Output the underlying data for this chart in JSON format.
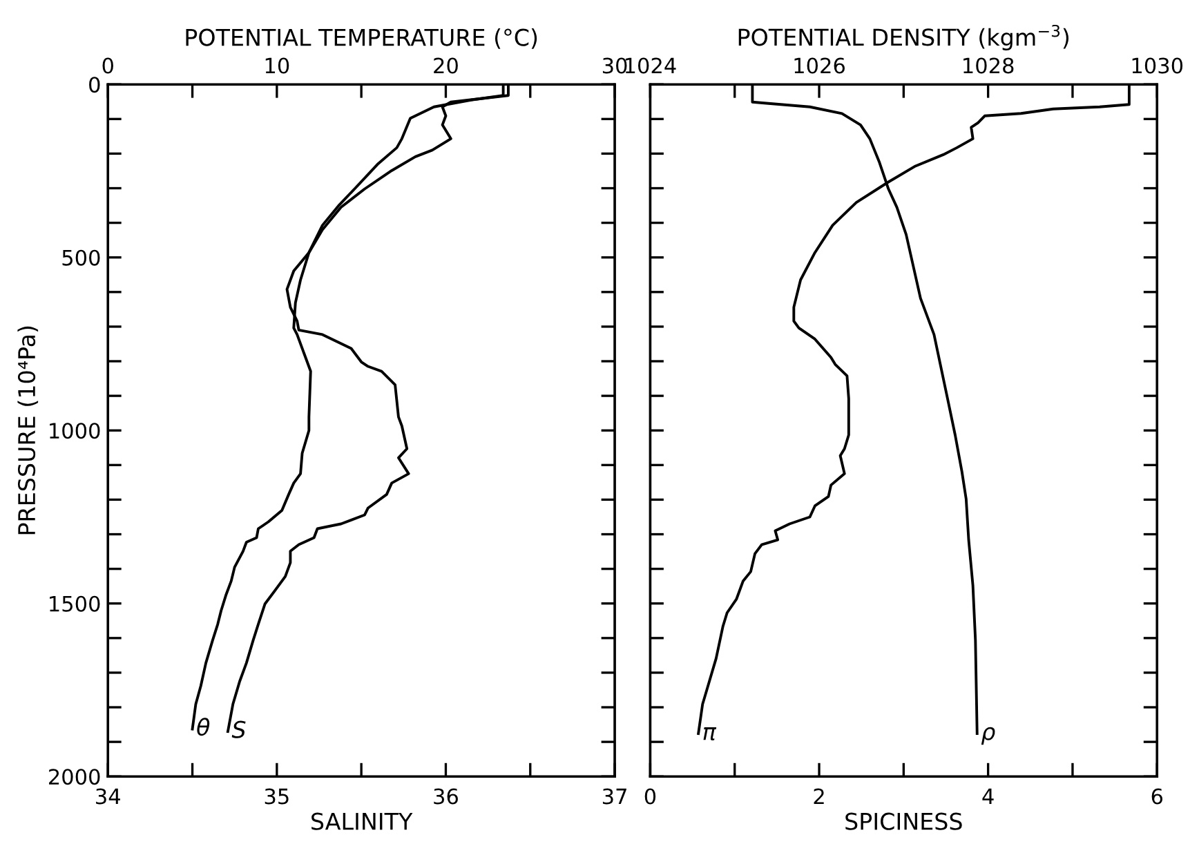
{
  "chart_data": [
    {
      "type": "line",
      "xlabel": "SALINITY",
      "x2label": "POTENTIAL TEMPERATURE (°C)",
      "ylabel": "PRESSURE (10⁴Pa)",
      "xlim": [
        34,
        37
      ],
      "xticks": [
        34,
        {
          "value": 34.5,
          "label": null
        },
        35,
        {
          "value": 35.5,
          "label": null
        },
        36,
        {
          "value": 36.5,
          "label": null
        },
        37
      ],
      "x2lim": [
        0,
        30
      ],
      "x2ticks": [
        0,
        {
          "value": 5,
          "label": null
        },
        10,
        {
          "value": 15,
          "label": null
        },
        20,
        {
          "value": 25,
          "label": null
        },
        30
      ],
      "ylim": [
        2000,
        0
      ],
      "yticks": [
        0,
        {
          "value": 100,
          "label": null
        },
        {
          "value": 200,
          "label": null
        },
        {
          "value": 300,
          "label": null
        },
        {
          "value": 400,
          "label": null
        },
        500,
        {
          "value": 600,
          "label": null
        },
        {
          "value": 700,
          "label": null
        },
        {
          "value": 800,
          "label": null
        },
        {
          "value": 900,
          "label": null
        },
        1000,
        {
          "value": 1100,
          "label": null
        },
        {
          "value": 1200,
          "label": null
        },
        {
          "value": 1300,
          "label": null
        },
        {
          "value": 1400,
          "label": null
        },
        1500,
        {
          "value": 1600,
          "label": null
        },
        {
          "value": 1700,
          "label": null
        },
        {
          "value": 1800,
          "label": null
        },
        {
          "value": 1900,
          "label": null
        },
        2000
      ],
      "grid": false,
      "legend": false,
      "series": [
        {
          "name": "θ",
          "axis": "x2",
          "color": "#000000",
          "values": [
            0,
            32,
            45,
            65,
            98,
            157,
            183,
            229,
            302,
            348,
            407,
            486,
            565,
            631,
            704,
            723,
            776,
            829,
            961,
            1000,
            1066,
            1125,
            1152,
            1185,
            1231,
            1264,
            1284,
            1310,
            1323,
            1349,
            1395,
            1435,
            1474,
            1521,
            1560,
            1606,
            1672,
            1738,
            1791,
            1863
          ],
          "x": [
            23.4,
            23.4,
            21.5,
            19.3,
            17.9,
            17.4,
            17.1,
            16.0,
            14.6,
            13.7,
            12.7,
            11.9,
            11.4,
            11.1,
            11.0,
            11.2,
            11.6,
            12.0,
            11.9,
            11.9,
            11.5,
            11.4,
            11.0,
            10.7,
            10.3,
            9.5,
            8.9,
            8.8,
            8.2,
            8.0,
            7.5,
            7.3,
            7.0,
            6.7,
            6.5,
            6.2,
            5.8,
            5.5,
            5.2,
            5.0
          ]
        },
        {
          "name": "S",
          "color": "#000000",
          "values": [
            0,
            32,
            51,
            65,
            91,
            117,
            157,
            190,
            209,
            249,
            302,
            355,
            420,
            486,
            539,
            592,
            644,
            684,
            710,
            723,
            763,
            802,
            815,
            829,
            868,
            961,
            987,
            1053,
            1079,
            1125,
            1152,
            1185,
            1224,
            1244,
            1270,
            1284,
            1310,
            1330,
            1349,
            1382,
            1422,
            1462,
            1501,
            1560,
            1606,
            1672,
            1725,
            1791,
            1870
          ],
          "x": [
            36.37,
            36.37,
            36.03,
            35.98,
            36.0,
            35.98,
            36.03,
            35.92,
            35.82,
            35.68,
            35.52,
            35.38,
            35.27,
            35.19,
            35.1,
            35.06,
            35.08,
            35.12,
            35.13,
            35.27,
            35.44,
            35.5,
            35.54,
            35.62,
            35.7,
            35.72,
            35.74,
            35.77,
            35.72,
            35.78,
            35.68,
            35.65,
            35.54,
            35.52,
            35.38,
            35.24,
            35.22,
            35.13,
            35.08,
            35.08,
            35.05,
            34.99,
            34.93,
            34.89,
            34.86,
            34.82,
            34.78,
            34.74,
            34.71
          ]
        }
      ]
    },
    {
      "type": "line",
      "xlabel": "SPICINESS",
      "x2label": "POTENTIAL DENSITY (kgm$^{−3}$)",
      "xlim": [
        0,
        6
      ],
      "xticks": [
        0,
        {
          "value": 1,
          "label": null
        },
        2,
        {
          "value": 3,
          "label": null
        },
        4,
        {
          "value": 5,
          "label": null
        },
        6
      ],
      "x2lim": [
        1024,
        1030
      ],
      "x2ticks": [
        1024,
        {
          "value": 1025,
          "label": null
        },
        1026,
        {
          "value": 1027,
          "label": null
        },
        1028,
        {
          "value": 1029,
          "label": null
        },
        1030
      ],
      "ylim": [
        2000,
        0
      ],
      "yticks": [
        0,
        {
          "value": 100,
          "label": null
        },
        {
          "value": 200,
          "label": null
        },
        {
          "value": 300,
          "label": null
        },
        {
          "value": 400,
          "label": null
        },
        500,
        {
          "value": 600,
          "label": null
        },
        {
          "value": 700,
          "label": null
        },
        {
          "value": 800,
          "label": null
        },
        {
          "value": 900,
          "label": null
        },
        1000,
        {
          "value": 1100,
          "label": null
        },
        {
          "value": 1200,
          "label": null
        },
        {
          "value": 1300,
          "label": null
        },
        {
          "value": 1400,
          "label": null
        },
        1500,
        {
          "value": 1600,
          "label": null
        },
        {
          "value": 1700,
          "label": null
        },
        {
          "value": 1800,
          "label": null
        },
        {
          "value": 1900,
          "label": null
        },
        2000
      ],
      "tick_labels": "x",
      "grid": false,
      "legend": false,
      "series": [
        {
          "name": "π",
          "color": "#000000",
          "values": [
            0,
            58,
            65,
            71,
            84,
            91,
            111,
            124,
            157,
            183,
            203,
            236,
            282,
            341,
            407,
            486,
            565,
            644,
            684,
            704,
            736,
            789,
            809,
            842,
            908,
            1013,
            1053,
            1073,
            1125,
            1158,
            1191,
            1218,
            1250,
            1270,
            1290,
            1316,
            1330,
            1356,
            1408,
            1435,
            1488,
            1527,
            1567,
            1659,
            1725,
            1791,
            1876
          ],
          "x": [
            5.67,
            5.67,
            5.32,
            4.77,
            4.39,
            3.96,
            3.88,
            3.8,
            3.82,
            3.63,
            3.47,
            3.14,
            2.82,
            2.44,
            2.16,
            1.95,
            1.78,
            1.7,
            1.7,
            1.76,
            1.95,
            2.14,
            2.19,
            2.33,
            2.35,
            2.35,
            2.3,
            2.25,
            2.3,
            2.14,
            2.11,
            1.95,
            1.89,
            1.65,
            1.48,
            1.51,
            1.32,
            1.24,
            1.19,
            1.1,
            1.02,
            0.91,
            0.86,
            0.78,
            0.7,
            0.62,
            0.57
          ]
        },
        {
          "name": "ρ",
          "axis": "x2",
          "color": "#000000",
          "values": [
            0,
            51,
            55,
            65,
            84,
            117,
            157,
            223,
            302,
            355,
            434,
            618,
            723,
            908,
            1013,
            1119,
            1198,
            1316,
            1448,
            1606,
            1876
          ],
          "x": [
            1025.21,
            1025.21,
            1025.4,
            1025.89,
            1026.27,
            1026.49,
            1026.6,
            1026.71,
            1026.82,
            1026.92,
            1027.03,
            1027.2,
            1027.36,
            1027.52,
            1027.61,
            1027.69,
            1027.74,
            1027.77,
            1027.82,
            1027.85,
            1027.87
          ]
        }
      ]
    }
  ]
}
